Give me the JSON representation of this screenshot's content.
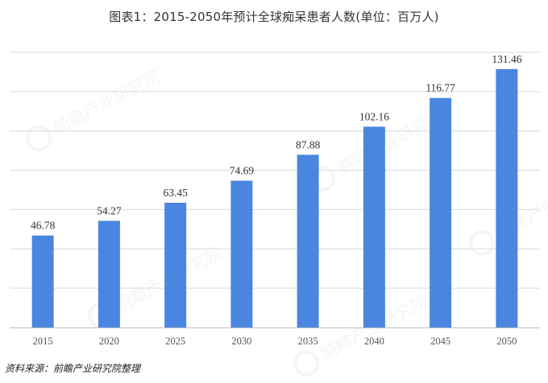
{
  "title": "图表1：2015-2050年预计全球痴呆患者人数(单位：百万人)",
  "source": "资料来源：前瞻产业研究院整理",
  "watermark": {
    "text": "前瞻产业研究院",
    "logo_icon": "qianzhan-logo-icon"
  },
  "colors": {
    "bar": "#4a86e0",
    "grid": "#d9d9d9",
    "axis": "#bfbfbf"
  },
  "chart_data": {
    "type": "bar",
    "title": "图表1：2015-2050年预计全球痴呆患者人数(单位：百万人)",
    "xlabel": "",
    "ylabel": "",
    "categories": [
      "2015",
      "2020",
      "2025",
      "2030",
      "2035",
      "2040",
      "2045",
      "2050"
    ],
    "values": [
      46.78,
      54.27,
      63.45,
      74.69,
      87.88,
      102.16,
      116.77,
      131.46
    ],
    "data_labels": [
      "46.78",
      "54.27",
      "63.45",
      "74.69",
      "87.88",
      "102.16",
      "116.77",
      "131.46"
    ],
    "ylim": [
      0,
      140
    ],
    "ytick_step": 20,
    "grid": true,
    "legend": "none"
  }
}
